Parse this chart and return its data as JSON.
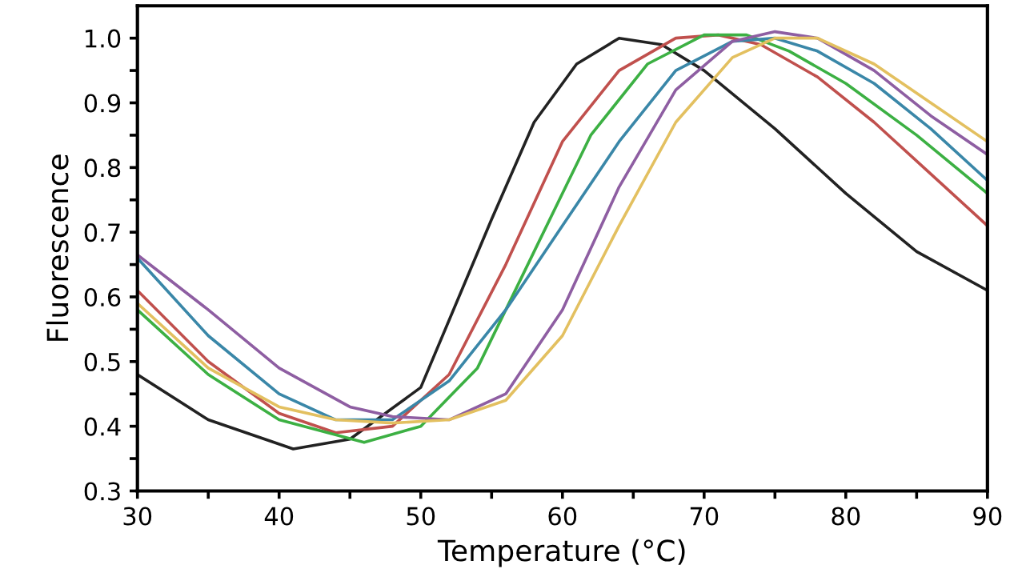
{
  "chart_data": {
    "type": "line",
    "xlabel": "Temperature (°C)",
    "ylabel": "Fluorescence",
    "xlim": [
      30,
      90
    ],
    "ylim": [
      0.3,
      1.05
    ],
    "xticks": [
      30,
      {
        "value": 35,
        "label": null
      },
      40,
      {
        "value": 45,
        "label": null
      },
      50,
      {
        "value": 55,
        "label": null
      },
      60,
      {
        "value": 65,
        "label": null
      },
      70,
      {
        "value": 75,
        "label": null
      },
      80,
      {
        "value": 85,
        "label": null
      },
      90
    ],
    "yticks": [
      0.3,
      {
        "value": 0.35,
        "label": null
      },
      0.4,
      {
        "value": 0.45,
        "label": null
      },
      0.5,
      {
        "value": 0.55,
        "label": null
      },
      0.6,
      {
        "value": 0.65,
        "label": null
      },
      0.7,
      {
        "value": 0.75,
        "label": null
      },
      0.8,
      {
        "value": 0.85,
        "label": null
      },
      0.9,
      {
        "value": 0.95,
        "label": null
      },
      {
        "value": 1.0,
        "label": "1.0"
      }
    ],
    "grid": false,
    "legend": false,
    "marker": "none",
    "line_style": "solid",
    "series": [
      {
        "color": "#222222",
        "x": [
          30,
          35,
          41,
          45,
          50,
          55,
          58,
          61,
          64,
          67,
          70,
          75,
          80,
          85,
          90
        ],
        "values": [
          0.48,
          0.41,
          0.365,
          0.38,
          0.46,
          0.72,
          0.87,
          0.96,
          1.0,
          0.99,
          0.95,
          0.86,
          0.76,
          0.67,
          0.61
        ]
      },
      {
        "color": "#c0504d",
        "x": [
          30,
          35,
          40,
          44,
          48,
          52,
          56,
          60,
          64,
          68,
          71,
          74,
          78,
          82,
          86,
          90
        ],
        "values": [
          0.61,
          0.5,
          0.42,
          0.39,
          0.4,
          0.48,
          0.65,
          0.84,
          0.95,
          1.0,
          1.005,
          0.99,
          0.94,
          0.87,
          0.79,
          0.71
        ]
      },
      {
        "color": "#3cb043",
        "x": [
          30,
          35,
          40,
          46,
          50,
          54,
          58,
          62,
          66,
          70,
          73,
          76,
          80,
          85,
          90
        ],
        "values": [
          0.58,
          0.48,
          0.41,
          0.375,
          0.4,
          0.49,
          0.67,
          0.85,
          0.96,
          1.005,
          1.005,
          0.98,
          0.93,
          0.85,
          0.76
        ]
      },
      {
        "color": "#3a87a8",
        "x": [
          30,
          35,
          40,
          44,
          48,
          52,
          56,
          60,
          64,
          68,
          72,
          75,
          78,
          82,
          86,
          90
        ],
        "values": [
          0.66,
          0.54,
          0.45,
          0.41,
          0.41,
          0.47,
          0.58,
          0.71,
          0.84,
          0.95,
          0.995,
          1.0,
          0.98,
          0.93,
          0.86,
          0.78
        ]
      },
      {
        "color": "#8e5ea2",
        "x": [
          30,
          35,
          40,
          45,
          48,
          52,
          56,
          60,
          64,
          68,
          72,
          75,
          78,
          82,
          86,
          90
        ],
        "values": [
          0.665,
          0.58,
          0.49,
          0.43,
          0.415,
          0.41,
          0.45,
          0.58,
          0.77,
          0.92,
          0.995,
          1.01,
          1.0,
          0.95,
          0.88,
          0.82
        ]
      },
      {
        "color": "#e3c060",
        "x": [
          30,
          35,
          40,
          44,
          48,
          52,
          56,
          60,
          64,
          68,
          72,
          75,
          78,
          82,
          86,
          90
        ],
        "values": [
          0.59,
          0.49,
          0.43,
          0.41,
          0.405,
          0.41,
          0.44,
          0.54,
          0.71,
          0.87,
          0.97,
          1.0,
          1.0,
          0.96,
          0.9,
          0.84
        ]
      }
    ]
  }
}
